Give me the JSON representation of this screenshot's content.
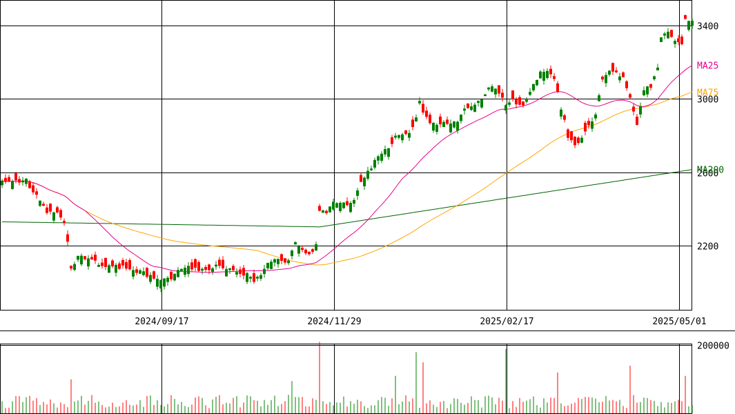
{
  "chart_data": [
    {
      "type": "candlestick",
      "ylim": [
        1850,
        3540
      ],
      "y_ticks": [
        2200,
        2600,
        3000,
        3400
      ],
      "x_ticks": [
        "2024/09/17",
        "2024/11/29",
        "2025/02/17",
        "2025/05/01"
      ],
      "x_tick_index": [
        48,
        98,
        148,
        198
      ],
      "grid": true,
      "colors": {
        "up": "#008000",
        "down": "#ff0000",
        "ma25": "#e6008a",
        "ma75": "#ffa500",
        "ma200": "#006400"
      },
      "ma_labels": {
        "ma25": "MA25",
        "ma75": "MA75",
        "ma200": "MA200"
      },
      "anchors": [
        [
          0,
          2560
        ],
        [
          5,
          2555
        ],
        [
          7,
          2560
        ],
        [
          8,
          2520
        ],
        [
          11,
          2440
        ],
        [
          13,
          2380
        ],
        [
          16,
          2370
        ],
        [
          18,
          2330
        ],
        [
          19,
          2210
        ],
        [
          20,
          2070
        ],
        [
          22,
          2140
        ],
        [
          24,
          2130
        ],
        [
          27,
          2110
        ],
        [
          30,
          2080
        ],
        [
          33,
          2090
        ],
        [
          35,
          2080
        ],
        [
          37,
          2070
        ],
        [
          40,
          2060
        ],
        [
          42,
          2040
        ],
        [
          45,
          2010
        ],
        [
          47,
          2030
        ],
        [
          49,
          2020
        ],
        [
          51,
          2060
        ],
        [
          53,
          2090
        ],
        [
          55,
          2080
        ],
        [
          57,
          2070
        ],
        [
          59,
          2060
        ],
        [
          61,
          2080
        ],
        [
          63,
          2090
        ],
        [
          65,
          2070
        ],
        [
          67,
          2060
        ],
        [
          69,
          2050
        ],
        [
          71,
          2040
        ],
        [
          73,
          2010
        ],
        [
          75,
          2050
        ],
        [
          77,
          2100
        ],
        [
          79,
          2130
        ],
        [
          81,
          2110
        ],
        [
          83,
          2120
        ],
        [
          85,
          2210
        ],
        [
          87,
          2180
        ],
        [
          89,
          2150
        ],
        [
          91,
          2200
        ],
        [
          92,
          2400
        ],
        [
          94,
          2380
        ],
        [
          96,
          2440
        ],
        [
          98,
          2430
        ],
        [
          100,
          2420
        ],
        [
          102,
          2460
        ],
        [
          104,
          2540
        ],
        [
          106,
          2600
        ],
        [
          108,
          2660
        ],
        [
          111,
          2720
        ],
        [
          114,
          2790
        ],
        [
          117,
          2800
        ],
        [
          119,
          2840
        ],
        [
          120,
          2900
        ],
        [
          121,
          2980
        ],
        [
          122,
          2920
        ],
        [
          124,
          2880
        ],
        [
          127,
          2860
        ],
        [
          130,
          2870
        ],
        [
          132,
          2880
        ],
        [
          134,
          2940
        ],
        [
          136,
          2960
        ],
        [
          138,
          2980
        ],
        [
          140,
          3030
        ],
        [
          142,
          3080
        ],
        [
          144,
          3040
        ],
        [
          146,
          2960
        ],
        [
          148,
          2990
        ],
        [
          150,
          2960
        ],
        [
          152,
          2990
        ],
        [
          154,
          3090
        ],
        [
          156,
          3140
        ],
        [
          158,
          3150
        ],
        [
          160,
          3120
        ],
        [
          162,
          2950
        ],
        [
          164,
          2800
        ],
        [
          166,
          2740
        ],
        [
          168,
          2780
        ],
        [
          170,
          2850
        ],
        [
          172,
          2920
        ],
        [
          174,
          3100
        ],
        [
          176,
          3150
        ],
        [
          178,
          3140
        ],
        [
          180,
          3110
        ],
        [
          182,
          3000
        ],
        [
          184,
          2870
        ],
        [
          185,
          2950
        ],
        [
          186,
          3050
        ],
        [
          188,
          3070
        ],
        [
          190,
          3180
        ],
        [
          191,
          3330
        ],
        [
          193,
          3370
        ],
        [
          195,
          3320
        ],
        [
          197,
          3290
        ],
        [
          198,
          3440
        ],
        [
          199,
          3420
        ]
      ],
      "volume": {
        "ylim": [
          0,
          205000
        ],
        "tick": 200000,
        "peaks": [
          [
            92,
            210000
          ],
          [
            120,
            180000
          ],
          [
            146,
            190000
          ],
          [
            114,
            110000
          ],
          [
            122,
            150000
          ],
          [
            161,
            120000
          ],
          [
            198,
            110000
          ],
          [
            182,
            140000
          ],
          [
            20,
            100000
          ],
          [
            84,
            95000
          ]
        ]
      }
    }
  ]
}
